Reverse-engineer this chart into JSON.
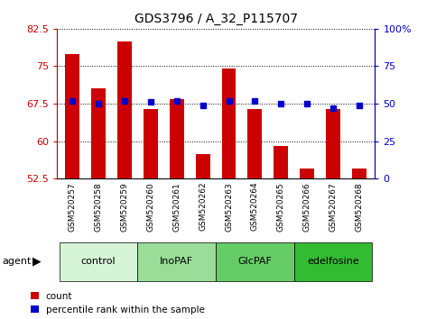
{
  "title": "GDS3796 / A_32_P115707",
  "samples": [
    "GSM520257",
    "GSM520258",
    "GSM520259",
    "GSM520260",
    "GSM520261",
    "GSM520262",
    "GSM520263",
    "GSM520264",
    "GSM520265",
    "GSM520266",
    "GSM520267",
    "GSM520268"
  ],
  "counts": [
    77.5,
    70.5,
    80.0,
    66.5,
    68.5,
    57.5,
    74.5,
    66.5,
    59.0,
    54.5,
    66.5,
    54.5
  ],
  "percentile": [
    52,
    50,
    52,
    51,
    52,
    49,
    52,
    52,
    50,
    50,
    47,
    49
  ],
  "ylim_left": [
    52.5,
    82.5
  ],
  "ylim_right": [
    0,
    100
  ],
  "yticks_left": [
    52.5,
    60.0,
    67.5,
    75.0,
    82.5
  ],
  "yticks_right": [
    0,
    25,
    50,
    75,
    100
  ],
  "ytick_labels_left": [
    "52.5",
    "60",
    "67.5",
    "75",
    "82.5"
  ],
  "ytick_labels_right": [
    "0",
    "25",
    "50",
    "75",
    "100%"
  ],
  "groups": [
    {
      "label": "control",
      "start": 0,
      "end": 3,
      "color": "#d6f5d6"
    },
    {
      "label": "InoPAF",
      "start": 3,
      "end": 6,
      "color": "#99dd99"
    },
    {
      "label": "GlcPAF",
      "start": 6,
      "end": 9,
      "color": "#66cc66"
    },
    {
      "label": "edelfosine",
      "start": 9,
      "end": 12,
      "color": "#33bb33"
    }
  ],
  "bar_color": "#cc0000",
  "dot_color": "#0000cc",
  "grid_color": "#000000",
  "bg_color": "#ffffff",
  "tick_bg_color": "#c8c8c8",
  "left_axis_color": "#cc0000",
  "right_axis_color": "#0000cc",
  "bar_width": 0.55,
  "legend_items": [
    "count",
    "percentile rank within the sample"
  ]
}
